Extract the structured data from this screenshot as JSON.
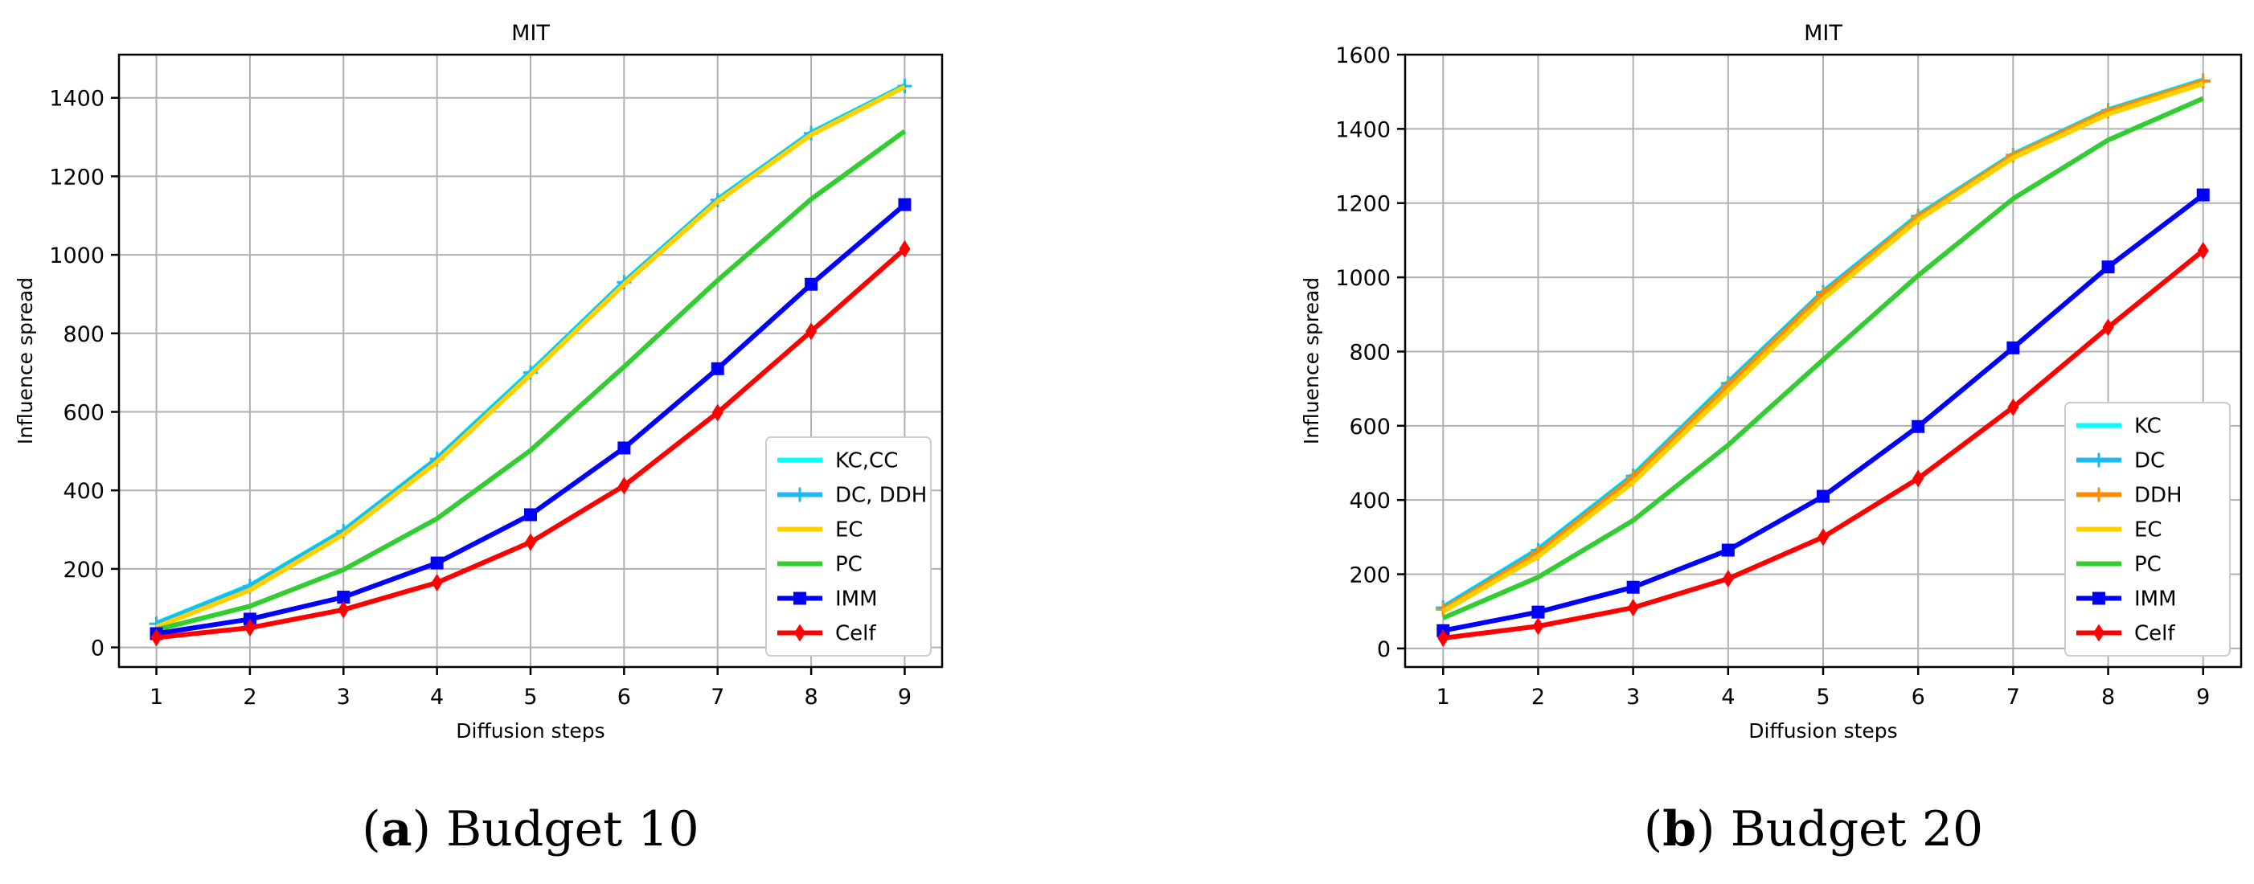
{
  "chart_data": [
    {
      "type": "line",
      "title": "MIT",
      "xlabel": "Diffusion steps",
      "ylabel": "Influence spread",
      "x": [
        1,
        2,
        3,
        4,
        5,
        6,
        7,
        8,
        9
      ],
      "xlim": [
        0.6,
        9.4
      ],
      "ylim": [
        -50,
        1510
      ],
      "yticks": [
        0,
        200,
        400,
        600,
        800,
        1000,
        1200,
        1400
      ],
      "grid": true,
      "legend_position": "lower right",
      "series": [
        {
          "name": "KC,CC",
          "color": "#00ffff",
          "marker": "none",
          "values": [
            62,
            158,
            298,
            482,
            703,
            932,
            1142,
            1312,
            1432
          ]
        },
        {
          "name": "DC, DDH",
          "color": "#1cb8f0",
          "marker": "plus",
          "values": [
            60,
            156,
            296,
            480,
            700,
            930,
            1140,
            1310,
            1430
          ]
        },
        {
          "name": "EC",
          "color": "#ffd000",
          "marker": "none",
          "values": [
            52,
            146,
            288,
            472,
            695,
            925,
            1136,
            1306,
            1428
          ]
        },
        {
          "name": "PC",
          "color": "#33cc33",
          "marker": "none",
          "values": [
            45,
            105,
            198,
            328,
            502,
            715,
            935,
            1142,
            1315
          ]
        },
        {
          "name": "IMM",
          "color": "#0000ff",
          "marker": "square",
          "values": [
            35,
            72,
            128,
            215,
            338,
            508,
            710,
            925,
            1128
          ]
        },
        {
          "name": "Celf",
          "color": "#ff0000",
          "marker": "diamond",
          "values": [
            25,
            50,
            96,
            165,
            268,
            412,
            598,
            805,
            1015
          ]
        }
      ]
    },
    {
      "type": "line",
      "title": "MIT",
      "xlabel": "Diffusion steps",
      "ylabel": "Influence spread",
      "x": [
        1,
        2,
        3,
        4,
        5,
        6,
        7,
        8,
        9
      ],
      "xlim": [
        0.6,
        9.4
      ],
      "ylim": [
        -50,
        1600
      ],
      "yticks": [
        0,
        200,
        400,
        600,
        800,
        1000,
        1200,
        1400,
        1600
      ],
      "grid": true,
      "legend_position": "lower right",
      "series": [
        {
          "name": "KC",
          "color": "#00ffff",
          "marker": "none",
          "values": [
            112,
            268,
            468,
            718,
            962,
            1168,
            1332,
            1452,
            1532
          ]
        },
        {
          "name": "DC",
          "color": "#1cb8f0",
          "marker": "plus",
          "values": [
            110,
            265,
            465,
            715,
            960,
            1165,
            1330,
            1450,
            1530
          ]
        },
        {
          "name": "DDH",
          "color": "#ff8c00",
          "marker": "plus",
          "values": [
            105,
            258,
            460,
            708,
            955,
            1162,
            1328,
            1448,
            1528
          ]
        },
        {
          "name": "EC",
          "color": "#ffd000",
          "marker": "none",
          "values": [
            100,
            248,
            448,
            695,
            942,
            1155,
            1322,
            1440,
            1522
          ]
        },
        {
          "name": "PC",
          "color": "#33cc33",
          "marker": "none",
          "values": [
            82,
            192,
            345,
            548,
            778,
            1005,
            1212,
            1370,
            1482
          ]
        },
        {
          "name": "IMM",
          "color": "#0000ff",
          "marker": "square",
          "values": [
            48,
            98,
            165,
            265,
            410,
            598,
            810,
            1028,
            1222
          ]
        },
        {
          "name": "Celf",
          "color": "#ff0000",
          "marker": "diamond",
          "values": [
            28,
            60,
            110,
            188,
            300,
            458,
            650,
            865,
            1072
          ]
        }
      ]
    }
  ],
  "captions": [
    {
      "label": "a",
      "text": ") Budget 10"
    },
    {
      "label": "b",
      "text": ") Budget 20"
    }
  ]
}
